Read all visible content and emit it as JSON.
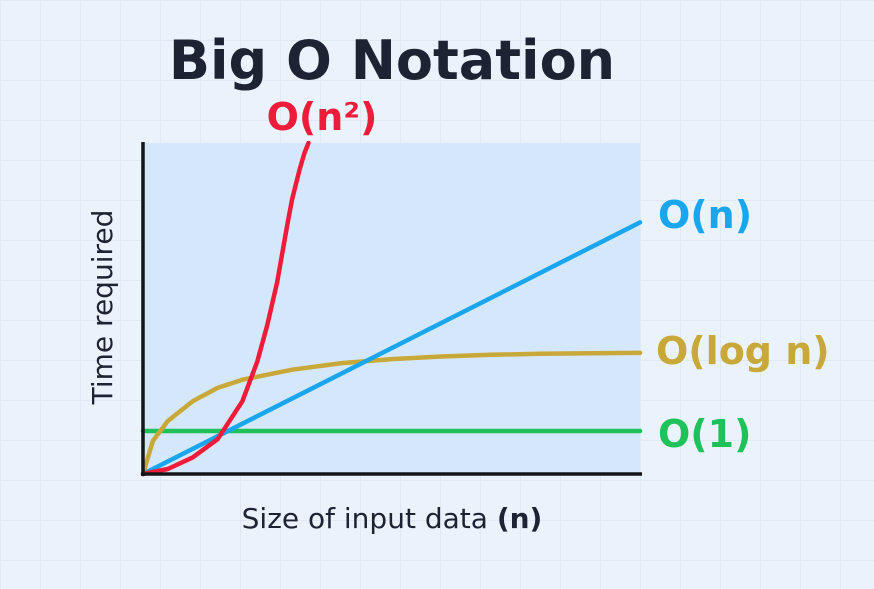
{
  "chart_data": {
    "type": "line",
    "title": "Big O Notation",
    "xlabel": "Size of input data",
    "xlabel_bold": "(n)",
    "ylabel": "Time required",
    "xlim": [
      0,
      100
    ],
    "ylim": [
      0,
      100
    ],
    "grid": false,
    "series": [
      {
        "name": "O(1)",
        "color": "#1fc25a",
        "x": [
          0,
          100
        ],
        "y": [
          13,
          13
        ]
      },
      {
        "name": "O(log n)",
        "color": "#c9a83a",
        "x": [
          0,
          2,
          5,
          10,
          15,
          20,
          30,
          40,
          50,
          60,
          70,
          80,
          90,
          100
        ],
        "y": [
          0,
          10,
          16,
          22,
          26,
          28.5,
          31.5,
          33.5,
          34.7,
          35.5,
          36.0,
          36.3,
          36.5,
          36.6
        ]
      },
      {
        "name": "O(n)",
        "color": "#1aa6ee",
        "x": [
          0,
          100
        ],
        "y": [
          0,
          76
        ]
      },
      {
        "name": "O(n²)",
        "color": "#ee1c3a",
        "x": [
          0,
          5,
          10,
          15,
          20,
          23,
          25,
          27,
          29,
          30,
          31.5,
          32.5,
          33.3
        ],
        "y": [
          0,
          1.5,
          5,
          10.5,
          22,
          34,
          45,
          58,
          75,
          83,
          92,
          97,
          100
        ]
      }
    ]
  }
}
